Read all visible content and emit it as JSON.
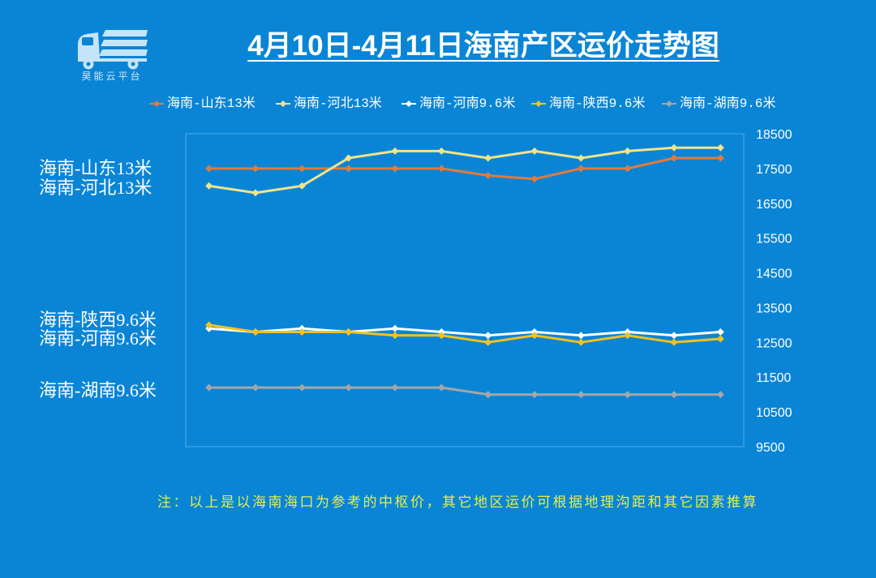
{
  "logo": {
    "icon": "truck-icon",
    "text": "昊能云平台"
  },
  "chart_data": {
    "type": "line",
    "title": "4月10日-4月11日海南产区运价走势图",
    "xlabel": "",
    "ylabel": "",
    "ylim": [
      9500,
      18500
    ],
    "yticks": [
      18500,
      17500,
      16500,
      15500,
      14500,
      13500,
      12500,
      11500,
      10500,
      9500
    ],
    "y_axis_side": "right",
    "grid": false,
    "legend_position": "top",
    "series": [
      {
        "name": "海南-山东13米",
        "color": "#e27a3a",
        "values": [
          17500,
          17500,
          17500,
          17500,
          17500,
          17500,
          17300,
          17200,
          17500,
          17500,
          17800,
          17800
        ]
      },
      {
        "name": "海南-河北13米",
        "color": "#f2e48a",
        "values": [
          17000,
          16800,
          17000,
          17800,
          18000,
          18000,
          17800,
          18000,
          17800,
          18000,
          18100,
          18100
        ]
      },
      {
        "name": "海南-河南9.6米",
        "color": "#ffffff",
        "values": [
          12900,
          12800,
          12900,
          12800,
          12900,
          12800,
          12700,
          12800,
          12700,
          12800,
          12700,
          12800
        ]
      },
      {
        "name": "海南-陕西9.6米",
        "color": "#f4c21c",
        "values": [
          13000,
          12800,
          12800,
          12800,
          12700,
          12700,
          12500,
          12700,
          12500,
          12700,
          12500,
          12600
        ]
      },
      {
        "name": "海南-湖南9.6米",
        "color": "#a6a6a6",
        "values": [
          11200,
          11200,
          11200,
          11200,
          11200,
          11200,
          11000,
          11000,
          11000,
          11000,
          11000,
          11000
        ]
      }
    ],
    "annotations": [
      {
        "text": "海南-山东13米"
      },
      {
        "text": "海南-河北13米"
      },
      {
        "text": "海南-陕西9.6米"
      },
      {
        "text": "海南-河南9.6米"
      },
      {
        "text": "海南-湖南9.6米"
      }
    ]
  },
  "note": "注：以上是以海南海口为参考的中枢价，其它地区运价可根据地理沟距和其它因素推算"
}
